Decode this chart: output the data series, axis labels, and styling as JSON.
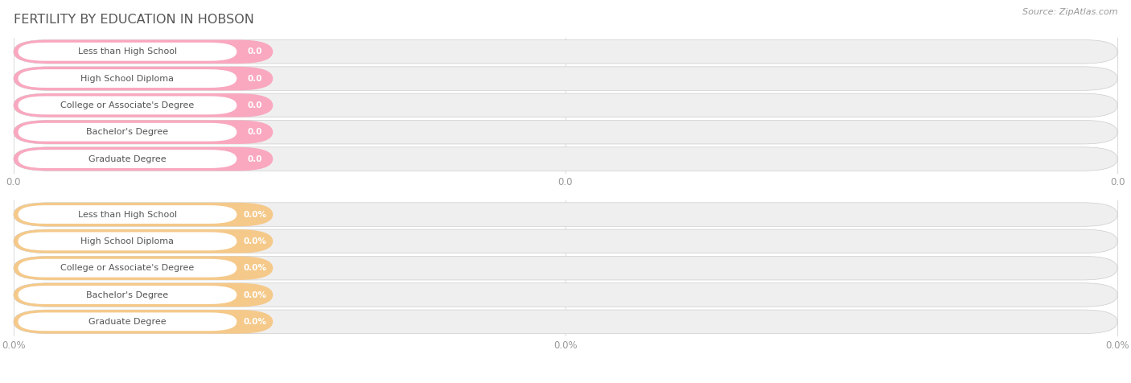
{
  "title": "FERTILITY BY EDUCATION IN HOBSON",
  "source": "Source: ZipAtlas.com",
  "categories": [
    "Less than High School",
    "High School Diploma",
    "College or Associate's Degree",
    "Bachelor's Degree",
    "Graduate Degree"
  ],
  "group1_labels": [
    "0.0",
    "0.0",
    "0.0",
    "0.0",
    "0.0"
  ],
  "group1_bar_color": "#F9A8BF",
  "group1_bg_color": "#EFEFEF",
  "group1_label_bg": "#FFFFFF",
  "group2_labels": [
    "0.0%",
    "0.0%",
    "0.0%",
    "0.0%",
    "0.0%"
  ],
  "group2_bar_color": "#F5C98A",
  "group2_bg_color": "#EFEFEF",
  "group2_label_bg": "#FFFFFF",
  "axis_tick_color": "#999999",
  "title_color": "#555555",
  "label_text_color": "#555555",
  "value_text_color": "#FFFFFF",
  "source_color": "#999999",
  "group1_xtick": "0.0",
  "group2_xtick": "0.0%",
  "background_color": "#FFFFFF",
  "grid_color": "#DDDDDD"
}
